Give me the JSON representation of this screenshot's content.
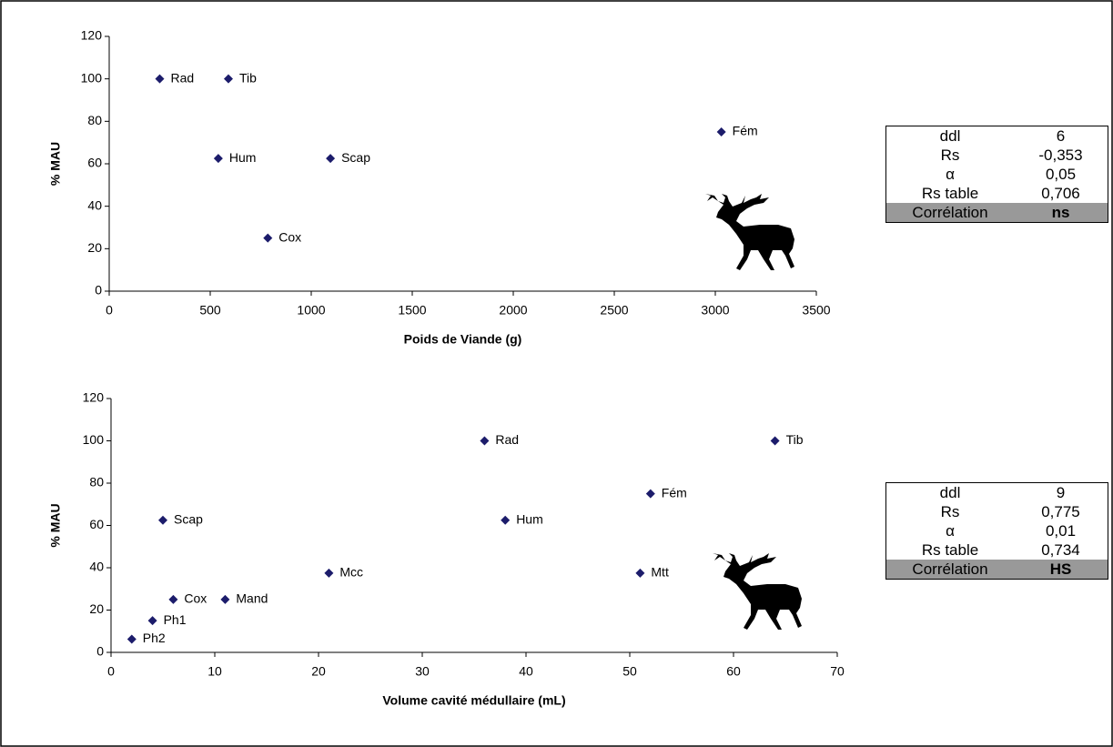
{
  "chart_data": [
    {
      "type": "scatter",
      "x_label": "Poids de Viande (g)",
      "y_label": "% MAU",
      "color": "#1c1c6b",
      "labels": [
        "Rad",
        "Tib",
        "Hum",
        "Scap",
        "Cox",
        "Fém"
      ],
      "x": [
        250,
        590,
        540,
        1095,
        785,
        3030
      ],
      "values": [
        100,
        100,
        62.5,
        62.5,
        25,
        75
      ],
      "xlim": [
        0,
        3500
      ],
      "xticks": [
        0,
        500,
        1000,
        1500,
        2000,
        2500,
        3000,
        3500
      ],
      "ylim": [
        0,
        120
      ],
      "yticks": [
        0,
        20,
        40,
        60,
        80,
        100,
        120
      ],
      "grid": false
    },
    {
      "type": "scatter",
      "x_label": "Volume cavité médullaire (mL)",
      "y_label": "% MAU",
      "color": "#1c1c6b",
      "labels": [
        "Rad",
        "Tib",
        "Fém",
        "Hum",
        "Scap",
        "Mcc",
        "Mtt",
        "Cox",
        "Mand",
        "Ph1",
        "Ph2"
      ],
      "x": [
        36,
        64,
        52,
        38,
        5,
        21,
        51,
        6,
        11,
        4,
        2
      ],
      "values": [
        100,
        100,
        75,
        62.5,
        62.5,
        37.5,
        37.5,
        25,
        25,
        15,
        6.25
      ],
      "xlim": [
        0,
        70
      ],
      "xticks": [
        0,
        10,
        20,
        30,
        40,
        50,
        60,
        70
      ],
      "ylim": [
        0,
        120
      ],
      "yticks": [
        0,
        20,
        40,
        60,
        80,
        100,
        120
      ],
      "grid": false
    }
  ],
  "tables": [
    {
      "rows": [
        [
          "ddl",
          "6"
        ],
        [
          "Rs",
          "-0,353"
        ],
        [
          "α",
          "0,05"
        ],
        [
          "Rs table",
          "0,706"
        ],
        [
          "Corrélation",
          "ns"
        ]
      ]
    },
    {
      "rows": [
        [
          "ddl",
          "9"
        ],
        [
          "Rs",
          "0,775"
        ],
        [
          "α",
          "0,01"
        ],
        [
          "Rs table",
          "0,734"
        ],
        [
          "Corrélation",
          "HS"
        ]
      ]
    }
  ]
}
